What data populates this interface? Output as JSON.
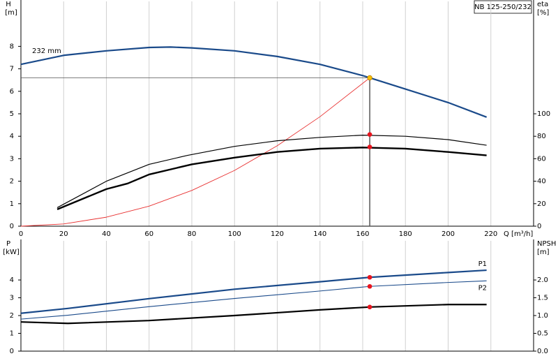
{
  "chart_data": [
    {
      "type": "line",
      "model": "NB 125-250/232",
      "ylabel": "H",
      "yunit": "[m]",
      "y2label": "eta",
      "y2unit": "[%]",
      "xlabel": "Q [m³/h]",
      "xlim": [
        0,
        240
      ],
      "xticks": [
        0,
        20,
        40,
        60,
        80,
        100,
        120,
        140,
        160,
        180,
        200,
        220
      ],
      "ylim": [
        0,
        10
      ],
      "yticks": [
        0,
        1,
        2,
        3,
        4,
        5,
        6,
        7,
        8
      ],
      "y2lim": [
        0,
        200
      ],
      "y2ticks": [
        0,
        20,
        40,
        60,
        80,
        100
      ],
      "grid": true,
      "series": [
        {
          "name": "232 mm",
          "color": "#1a4a8a",
          "width": 2.2,
          "x": [
            0,
            20,
            40,
            60,
            70,
            80,
            100,
            120,
            140,
            160,
            163.3,
            180,
            200,
            218
          ],
          "values": [
            7.2,
            7.6,
            7.8,
            7.95,
            7.97,
            7.93,
            7.8,
            7.55,
            7.2,
            6.7,
            6.6,
            6.1,
            5.5,
            4.85
          ]
        },
        {
          "color": "#e83030",
          "width": 0.9,
          "x": [
            0,
            20,
            40,
            60,
            80,
            100,
            120,
            140,
            163.3
          ],
          "values": [
            0,
            0.1,
            0.4,
            0.89,
            1.59,
            2.48,
            3.58,
            4.87,
            6.6
          ]
        },
        {
          "color": "#000000",
          "width": 1.2,
          "axis": "y2",
          "x": [
            17,
            40,
            60,
            78,
            100,
            120,
            140,
            160,
            180,
            200,
            218
          ],
          "values": [
            16.5,
            40,
            55,
            63,
            71,
            76,
            79,
            81,
            80,
            77,
            72
          ]
        },
        {
          "color": "#000000",
          "width": 2.4,
          "axis": "y2",
          "x": [
            17,
            40,
            50,
            60,
            80,
            100,
            120,
            140,
            160,
            180,
            200,
            218
          ],
          "values": [
            15,
            33,
            38,
            46,
            55,
            61,
            66,
            69,
            70,
            69,
            66,
            63
          ]
        }
      ],
      "markers": [
        {
          "x": 163.3,
          "y": 6.6,
          "color": "#f5c000",
          "guides": true
        },
        {
          "x": 163.3,
          "y": 81.6,
          "color": "#e8141e",
          "axis": "y2"
        },
        {
          "x": 163.3,
          "y": 70.5,
          "color": "#e8141e",
          "axis": "y2"
        }
      ]
    },
    {
      "type": "line",
      "ylabel": "P",
      "yunit": "[kW]",
      "y2label": "NPSH",
      "y2unit": "[m]",
      "xlim": [
        0,
        240
      ],
      "ylim": [
        0,
        6.2
      ],
      "yticks": [
        0,
        1,
        2,
        3,
        4
      ],
      "y2lim": [
        0,
        3.1
      ],
      "y2ticks": [
        {
          "value": 0,
          "label": "0.0"
        },
        0.5,
        {
          "value": 1,
          "label": "1.0"
        },
        1.5,
        {
          "value": 2,
          "label": "2.0"
        }
      ],
      "series": [
        {
          "name": "P1",
          "color": "#1a4a8a",
          "width": 2.2,
          "x": [
            0,
            22,
            60,
            100,
            140,
            163.3,
            200,
            218
          ],
          "values": [
            2.13,
            2.4,
            2.95,
            3.48,
            3.9,
            4.15,
            4.42,
            4.55
          ]
        },
        {
          "name": "P2",
          "color": "#1a4a8a",
          "width": 1.1,
          "x": [
            0,
            22,
            60,
            100,
            140,
            163.3,
            200,
            218
          ],
          "values": [
            1.8,
            2.02,
            2.5,
            2.96,
            3.38,
            3.64,
            3.86,
            3.95
          ]
        },
        {
          "color": "#000000",
          "width": 2.2,
          "axis": "y2",
          "x": [
            0,
            22,
            60,
            100,
            140,
            163.3,
            200,
            218
          ],
          "values": [
            0.82,
            0.78,
            0.86,
            1.0,
            1.16,
            1.24,
            1.31,
            1.31
          ]
        }
      ],
      "markers": [
        {
          "x": 163.3,
          "y": 4.15,
          "color": "#e8141e"
        },
        {
          "x": 163.3,
          "y": 3.64,
          "color": "#e8141e"
        },
        {
          "x": 163.3,
          "y": 1.24,
          "color": "#e8141e",
          "axis": "y2"
        }
      ]
    }
  ]
}
